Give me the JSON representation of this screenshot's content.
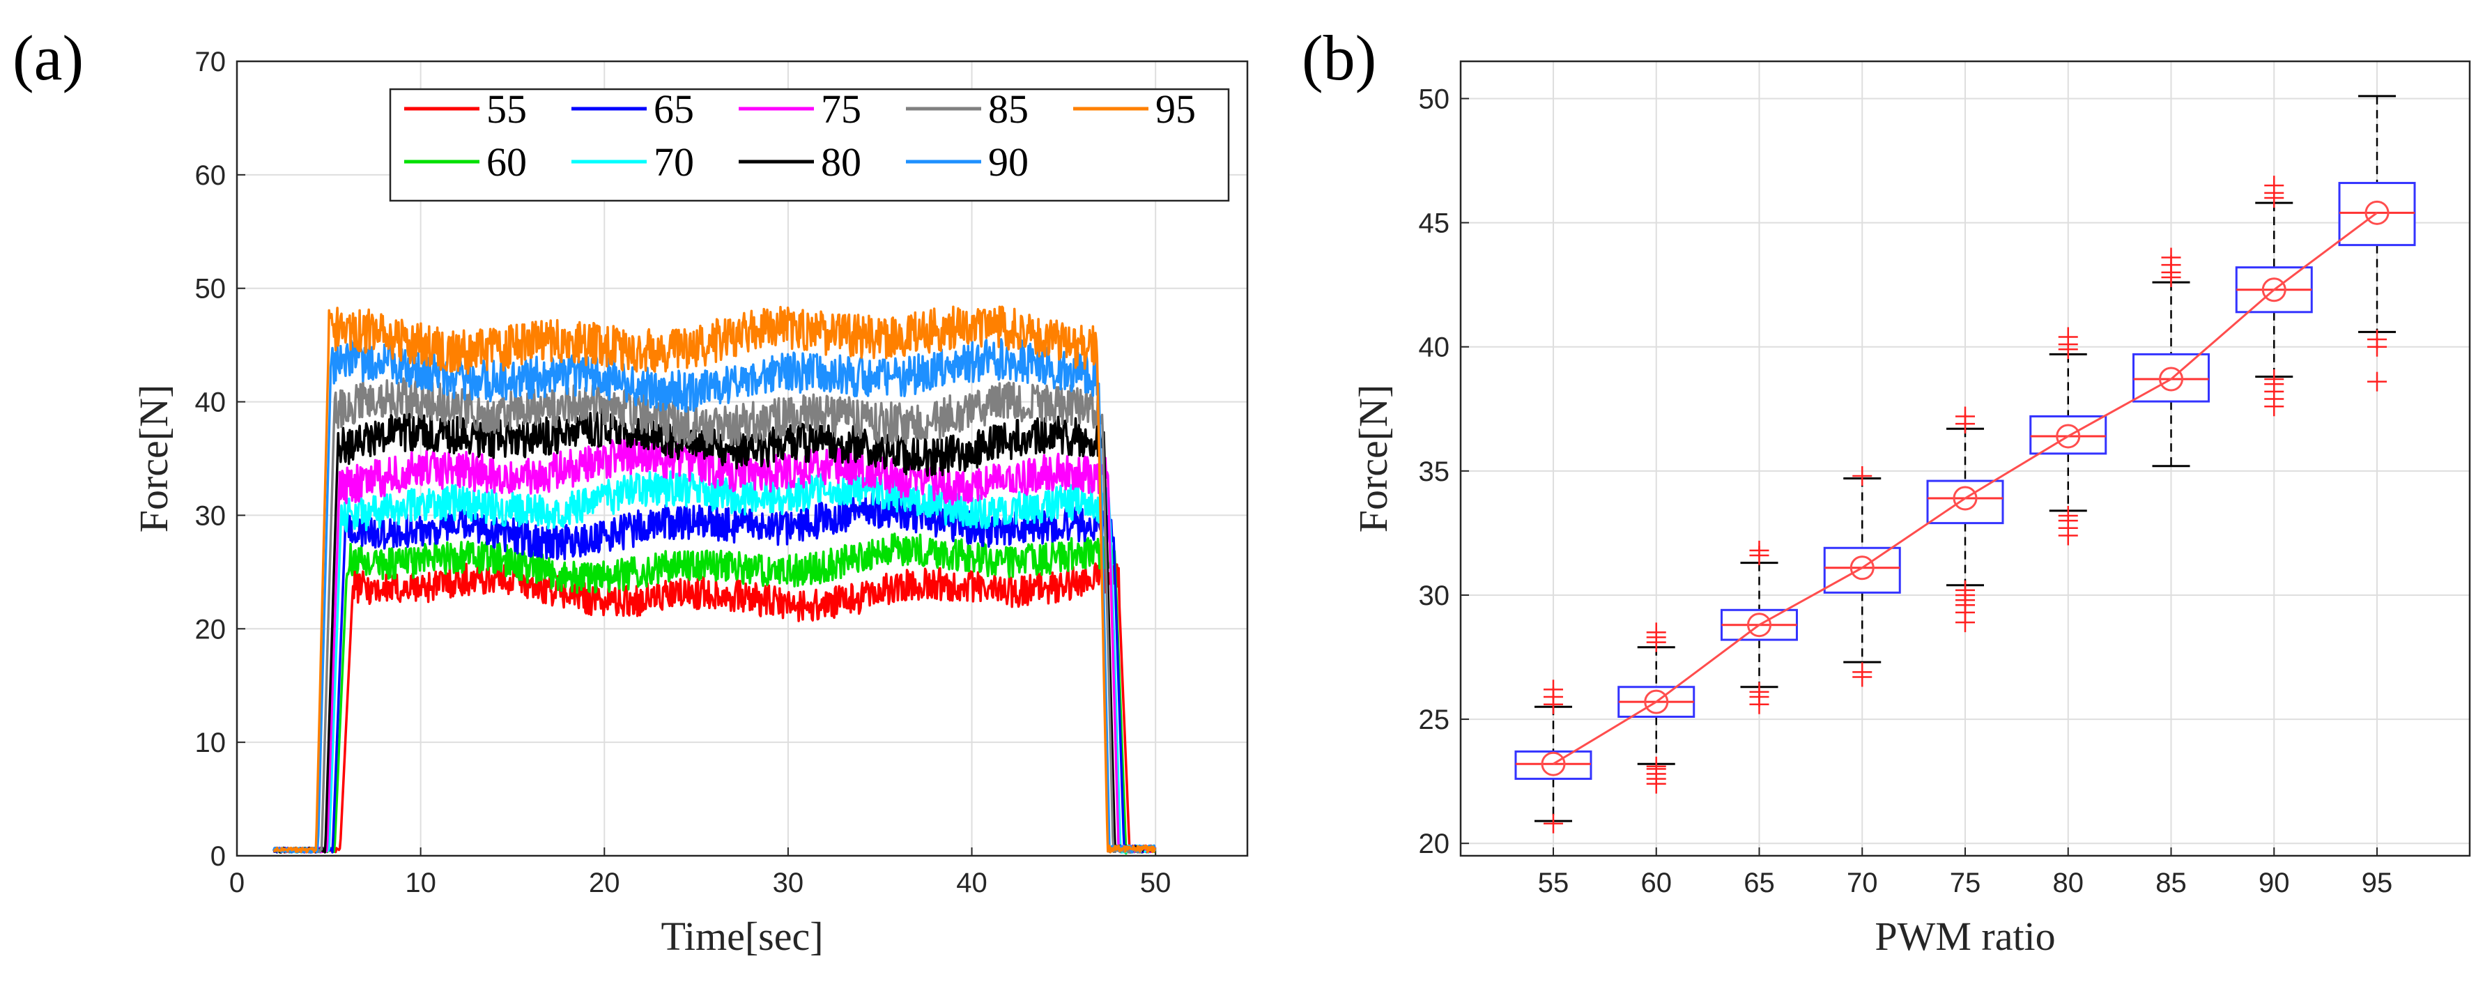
{
  "panels": {
    "a": "(a)",
    "b": "(b)"
  },
  "chart_data": [
    {
      "type": "line",
      "xlabel": "Time[sec]",
      "ylabel": "Force[N]",
      "xlim": [
        0,
        55
      ],
      "ylim": [
        0,
        70
      ],
      "xticks": [
        0,
        10,
        20,
        30,
        40,
        50
      ],
      "yticks": [
        0,
        10,
        20,
        30,
        40,
        50,
        60,
        70
      ],
      "grid": true,
      "legend_position": "top-right",
      "series": [
        {
          "name": "55",
          "color": "#ff0000",
          "rise": 6.3,
          "fall": 48.0,
          "level": 23.3,
          "noise": 2.2
        },
        {
          "name": "60",
          "color": "#00e000",
          "rise": 6.0,
          "fall": 47.8,
          "level": 25.8,
          "noise": 2.2
        },
        {
          "name": "65",
          "color": "#0000ff",
          "rise": 5.9,
          "fall": 47.7,
          "level": 29.0,
          "noise": 2.4
        },
        {
          "name": "70",
          "color": "#00ffff",
          "rise": 5.7,
          "fall": 47.5,
          "level": 31.3,
          "noise": 2.4
        },
        {
          "name": "75",
          "color": "#ff00ff",
          "rise": 5.6,
          "fall": 47.4,
          "level": 33.8,
          "noise": 2.6
        },
        {
          "name": "80",
          "color": "#000000",
          "rise": 5.5,
          "fall": 47.2,
          "level": 36.5,
          "noise": 2.6
        },
        {
          "name": "85",
          "color": "#808080",
          "rise": 5.3,
          "fall": 47.1,
          "level": 39.0,
          "noise": 2.8
        },
        {
          "name": "90",
          "color": "#1e90ff",
          "rise": 5.1,
          "fall": 46.9,
          "level": 42.3,
          "noise": 2.8
        },
        {
          "name": "95",
          "color": "#ff8000",
          "rise": 5.0,
          "fall": 46.8,
          "level": 45.5,
          "noise": 3.0
        }
      ]
    },
    {
      "type": "box",
      "xlabel": "PWM ratio",
      "ylabel": "Force[N]",
      "ylim": [
        19.5,
        51.5
      ],
      "yticks": [
        20,
        25,
        30,
        35,
        40,
        45,
        50
      ],
      "categories": [
        "55",
        "60",
        "65",
        "70",
        "75",
        "80",
        "85",
        "90",
        "95"
      ],
      "grid": true,
      "boxes": [
        {
          "median": 23.2,
          "q1": 22.6,
          "q3": 23.7,
          "wlo": 20.9,
          "whi": 25.5,
          "outliers": [
            20.8,
            25.6,
            25.9,
            26.2
          ]
        },
        {
          "median": 25.7,
          "q1": 25.1,
          "q3": 26.3,
          "wlo": 23.2,
          "whi": 27.9,
          "outliers": [
            22.4,
            22.6,
            22.8,
            23.0,
            23.1,
            28.1,
            28.3,
            28.5
          ]
        },
        {
          "median": 28.8,
          "q1": 28.2,
          "q3": 29.4,
          "wlo": 26.3,
          "whi": 31.3,
          "outliers": [
            25.6,
            25.9,
            26.1,
            31.6,
            31.8
          ]
        },
        {
          "median": 31.1,
          "q1": 30.1,
          "q3": 31.9,
          "wlo": 27.3,
          "whi": 34.7,
          "outliers": [
            26.7,
            26.9,
            34.8
          ]
        },
        {
          "median": 33.9,
          "q1": 32.9,
          "q3": 34.6,
          "wlo": 30.4,
          "whi": 36.7,
          "outliers": [
            28.9,
            29.3,
            29.6,
            29.8,
            30.0,
            30.2,
            36.9,
            37.2
          ]
        },
        {
          "median": 36.4,
          "q1": 35.7,
          "q3": 37.2,
          "wlo": 33.4,
          "whi": 39.7,
          "outliers": [
            32.4,
            32.7,
            33.0,
            33.2,
            39.9,
            40.1,
            40.4
          ]
        },
        {
          "median": 38.7,
          "q1": 37.8,
          "q3": 39.7,
          "wlo": 35.2,
          "whi": 42.6,
          "outliers": [
            42.8,
            43.0,
            43.3,
            43.6
          ]
        },
        {
          "median": 42.3,
          "q1": 41.4,
          "q3": 43.2,
          "wlo": 38.8,
          "whi": 45.8,
          "outliers": [
            37.6,
            37.9,
            38.2,
            38.5,
            38.7,
            46.0,
            46.2,
            46.5
          ]
        },
        {
          "median": 45.4,
          "q1": 44.1,
          "q3": 46.6,
          "wlo": 40.6,
          "whi": 50.1,
          "outliers": [
            38.6,
            40.0,
            40.3
          ]
        }
      ],
      "mean_line": {
        "color": "#ff4d4d",
        "values": [
          23.2,
          25.7,
          28.8,
          31.1,
          33.9,
          36.4,
          38.7,
          42.3,
          45.4
        ]
      }
    }
  ]
}
